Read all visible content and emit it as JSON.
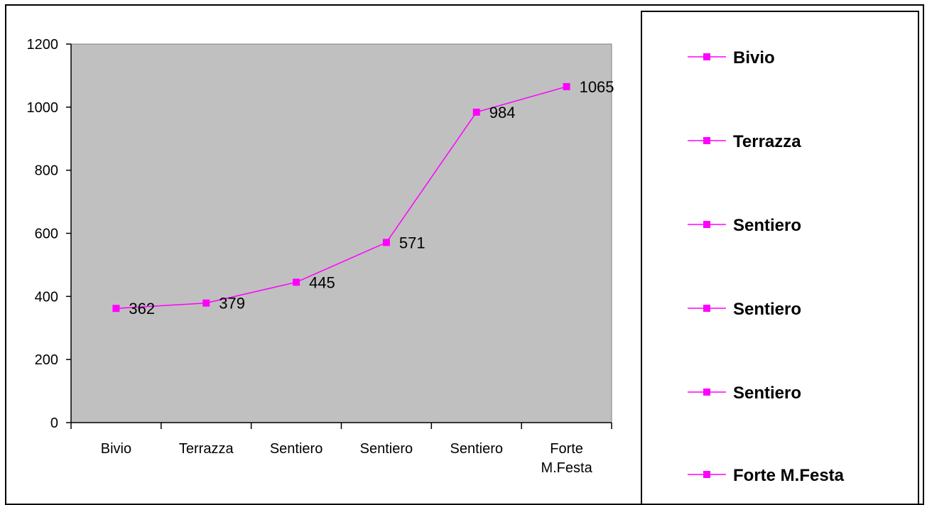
{
  "colors": {
    "plot_background": "#c0c0c0",
    "series_line": "#ff00ff",
    "axis": "#000000"
  },
  "chart_data": {
    "type": "line",
    "categories": [
      "Bivio",
      "Terrazza",
      "Sentiero",
      "Sentiero",
      "Sentiero",
      "Forte M.Festa"
    ],
    "series": [
      {
        "values": [
          362,
          379,
          445,
          571,
          984,
          1065
        ]
      }
    ],
    "data_labels": [
      "362",
      "379",
      "445",
      "571",
      "984",
      "1065"
    ],
    "y_ticks": [
      0,
      200,
      400,
      600,
      800,
      1000,
      1200
    ],
    "ylim": [
      0,
      1200
    ],
    "grid": false,
    "legend_position": "right",
    "legend_entries": [
      "Bivio",
      "Terrazza",
      "Sentiero",
      "Sentiero",
      "Sentiero",
      "Forte M.Festa"
    ],
    "title": "",
    "xlabel": "",
    "ylabel": ""
  }
}
